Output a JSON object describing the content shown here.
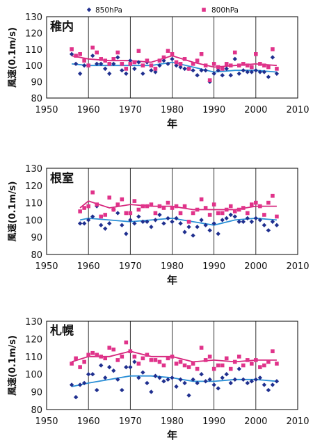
{
  "legend": {
    "series_a": "850hPa",
    "series_b": "800hPa"
  },
  "style": {
    "series_a_color": "#1f2f8f",
    "series_b_color": "#e0338a",
    "trend_a_color": "#2a8fd6",
    "trend_b_color": "#d6267d",
    "grid_color": "#000000"
  },
  "chart_data": [
    {
      "type": "scatter",
      "title": "稚内",
      "xlabel": "年",
      "ylabel": "風速(0.1m/s)",
      "xlim": [
        1950,
        2010
      ],
      "ylim": [
        80,
        130
      ],
      "xticks": [
        1950,
        1960,
        1970,
        1980,
        1990,
        2000,
        2010
      ],
      "yticks": [
        80,
        90,
        100,
        110,
        120,
        130
      ],
      "grid": "vertical",
      "legend_position": "top",
      "series": [
        {
          "name": "850hPa",
          "marker": "diamond",
          "x": [
            1956,
            1957,
            1958,
            1959,
            1960,
            1961,
            1962,
            1963,
            1964,
            1965,
            1966,
            1967,
            1968,
            1969,
            1970,
            1971,
            1972,
            1973,
            1974,
            1975,
            1976,
            1977,
            1978,
            1979,
            1980,
            1981,
            1982,
            1983,
            1984,
            1985,
            1986,
            1987,
            1988,
            1989,
            1990,
            1991,
            1992,
            1993,
            1994,
            1995,
            1996,
            1997,
            1998,
            1999,
            2000,
            2001,
            2002,
            2003,
            2004,
            2005
          ],
          "y": [
            107,
            101,
            95,
            100,
            100,
            106,
            101,
            101,
            98,
            95,
            101,
            105,
            97,
            95,
            103,
            98,
            102,
            95,
            102,
            97,
            96,
            100,
            103,
            101,
            104,
            100,
            99,
            98,
            98,
            97,
            94,
            97,
            97,
            90,
            95,
            97,
            94,
            98,
            94,
            104,
            95,
            97,
            96,
            96,
            97,
            96,
            96,
            93,
            105,
            95
          ]
        },
        {
          "name": "800hPa",
          "marker": "square",
          "x": [
            1956,
            1957,
            1958,
            1959,
            1960,
            1961,
            1962,
            1963,
            1964,
            1965,
            1966,
            1967,
            1968,
            1969,
            1970,
            1971,
            1972,
            1973,
            1974,
            1975,
            1976,
            1977,
            1978,
            1979,
            1980,
            1981,
            1982,
            1983,
            1984,
            1985,
            1986,
            1987,
            1988,
            1989,
            1990,
            1991,
            1992,
            1993,
            1994,
            1995,
            1996,
            1997,
            1998,
            1999,
            2000,
            2001,
            2002,
            2003,
            2004,
            2005
          ],
          "y": [
            110,
            106,
            107,
            103,
            100,
            111,
            108,
            104,
            103,
            101,
            104,
            108,
            101,
            98,
            101,
            102,
            109,
            100,
            103,
            100,
            98,
            103,
            105,
            109,
            107,
            102,
            101,
            104,
            98,
            101,
            103,
            107,
            100,
            91,
            101,
            99,
            98,
            101,
            100,
            108,
            100,
            101,
            100,
            99,
            107,
            101,
            100,
            99,
            110,
            98
          ]
        },
        {
          "name": "850hPa trend",
          "marker": "line",
          "x": [
            1956,
            1960,
            1965,
            1970,
            1975,
            1980,
            1985,
            1990,
            1995,
            2000,
            2005
          ],
          "y": [
            101,
            100,
            100,
            100,
            100,
            102,
            99,
            96,
            97,
            97,
            96
          ]
        },
        {
          "name": "800hPa trend",
          "marker": "line",
          "x": [
            1956,
            1960,
            1965,
            1970,
            1975,
            1980,
            1985,
            1990,
            1995,
            2000,
            2005
          ],
          "y": [
            106,
            104,
            103,
            103,
            102,
            106,
            102,
            99,
            100,
            101,
            100
          ]
        }
      ]
    },
    {
      "type": "scatter",
      "title": "根室",
      "xlabel": "年",
      "ylabel": "風速(0.1m/s)",
      "xlim": [
        1950,
        2010
      ],
      "ylim": [
        80,
        130
      ],
      "xticks": [
        1950,
        1960,
        1970,
        1980,
        1990,
        2000,
        2010
      ],
      "yticks": [
        80,
        90,
        100,
        110,
        120,
        130
      ],
      "grid": "vertical",
      "legend_position": "none",
      "series": [
        {
          "name": "850hPa",
          "marker": "diamond",
          "x": [
            1958,
            1959,
            1960,
            1961,
            1962,
            1963,
            1964,
            1965,
            1966,
            1967,
            1968,
            1969,
            1970,
            1971,
            1972,
            1973,
            1974,
            1975,
            1976,
            1977,
            1978,
            1979,
            1980,
            1981,
            1982,
            1983,
            1984,
            1985,
            1986,
            1987,
            1988,
            1989,
            1990,
            1991,
            1992,
            1993,
            1994,
            1995,
            1996,
            1997,
            1998,
            1999,
            2000,
            2001,
            2002,
            2003,
            2004,
            2005
          ],
          "y": [
            98,
            98,
            100,
            102,
            108,
            97,
            95,
            98,
            106,
            104,
            97,
            92,
            100,
            98,
            102,
            99,
            99,
            96,
            100,
            103,
            98,
            101,
            99,
            101,
            98,
            93,
            96,
            91,
            96,
            100,
            97,
            94,
            98,
            92,
            100,
            101,
            103,
            102,
            99,
            99,
            101,
            99,
            101,
            100,
            97,
            94,
            99,
            97
          ]
        },
        {
          "name": "800hPa",
          "marker": "square",
          "x": [
            1958,
            1959,
            1960,
            1961,
            1962,
            1963,
            1964,
            1965,
            1966,
            1967,
            1968,
            1969,
            1970,
            1971,
            1972,
            1973,
            1974,
            1975,
            1976,
            1977,
            1978,
            1979,
            1980,
            1981,
            1982,
            1983,
            1984,
            1985,
            1986,
            1987,
            1988,
            1989,
            1990,
            1991,
            1992,
            1993,
            1994,
            1995,
            1996,
            1997,
            1998,
            1999,
            2000,
            2001,
            2002,
            2003,
            2004,
            2005
          ],
          "y": [
            105,
            107,
            108,
            116,
            109,
            102,
            103,
            113,
            106,
            109,
            112,
            104,
            104,
            111,
            106,
            108,
            108,
            109,
            104,
            108,
            107,
            110,
            107,
            108,
            104,
            108,
            99,
            104,
            106,
            112,
            107,
            103,
            109,
            104,
            104,
            106,
            108,
            105,
            106,
            107,
            104,
            109,
            110,
            108,
            103,
            110,
            114,
            102
          ]
        },
        {
          "name": "850hPa trend",
          "marker": "line",
          "x": [
            1958,
            1960,
            1965,
            1970,
            1975,
            1980,
            1985,
            1990,
            1995,
            2000,
            2005
          ],
          "y": [
            100,
            101,
            100,
            99,
            100,
            101,
            99,
            97,
            100,
            101,
            100
          ]
        },
        {
          "name": "800hPa trend",
          "marker": "line",
          "x": [
            1958,
            1960,
            1965,
            1970,
            1975,
            1980,
            1985,
            1990,
            1995,
            2000,
            2005
          ],
          "y": [
            107,
            111,
            107,
            109,
            108,
            108,
            106,
            106,
            106,
            108,
            108
          ]
        }
      ]
    },
    {
      "type": "scatter",
      "title": "札幌",
      "xlabel": "年",
      "ylabel": "風速(0.1m/s)",
      "xlim": [
        1950,
        2010
      ],
      "ylim": [
        80,
        130
      ],
      "xticks": [
        1950,
        1960,
        1970,
        1980,
        1990,
        2000,
        2010
      ],
      "yticks": [
        80,
        90,
        100,
        110,
        120,
        130
      ],
      "grid": "vertical",
      "legend_position": "none",
      "series": [
        {
          "name": "850hPa",
          "marker": "diamond",
          "x": [
            1956,
            1957,
            1958,
            1959,
            1960,
            1961,
            1962,
            1963,
            1964,
            1965,
            1966,
            1967,
            1968,
            1969,
            1970,
            1971,
            1972,
            1973,
            1974,
            1975,
            1976,
            1977,
            1978,
            1979,
            1980,
            1981,
            1982,
            1983,
            1984,
            1985,
            1986,
            1987,
            1988,
            1989,
            1990,
            1991,
            1992,
            1993,
            1994,
            1995,
            1996,
            1997,
            1998,
            1999,
            2000,
            2001,
            2002,
            2003,
            2004,
            2005
          ],
          "y": [
            94,
            87,
            94,
            95,
            100,
            100,
            91,
            105,
            98,
            104,
            102,
            97,
            91,
            104,
            104,
            107,
            98,
            101,
            95,
            90,
            99,
            98,
            96,
            97,
            98,
            93,
            97,
            95,
            88,
            97,
            95,
            100,
            96,
            97,
            94,
            92,
            98,
            100,
            95,
            97,
            103,
            97,
            95,
            96,
            97,
            98,
            94,
            91,
            94,
            96
          ]
        },
        {
          "name": "800hPa",
          "marker": "square",
          "x": [
            1956,
            1957,
            1958,
            1959,
            1960,
            1961,
            1962,
            1963,
            1964,
            1965,
            1966,
            1967,
            1968,
            1969,
            1970,
            1971,
            1972,
            1973,
            1974,
            1975,
            1976,
            1977,
            1978,
            1979,
            1980,
            1981,
            1982,
            1983,
            1984,
            1985,
            1986,
            1987,
            1988,
            1989,
            1990,
            1991,
            1992,
            1993,
            1994,
            1995,
            1996,
            1997,
            1998,
            1999,
            2000,
            2001,
            2002,
            2003,
            2004,
            2005
          ],
          "y": [
            106,
            109,
            104,
            107,
            111,
            112,
            111,
            110,
            109,
            115,
            114,
            108,
            110,
            118,
            113,
            110,
            106,
            109,
            111,
            108,
            108,
            107,
            105,
            109,
            110,
            106,
            107,
            105,
            104,
            106,
            103,
            115,
            108,
            110,
            103,
            105,
            105,
            109,
            103,
            107,
            110,
            105,
            108,
            106,
            108,
            104,
            105,
            107,
            113,
            106
          ]
        },
        {
          "name": "850hPa trend",
          "marker": "line",
          "x": [
            1956,
            1960,
            1965,
            1970,
            1975,
            1980,
            1985,
            1990,
            1995,
            2000,
            2005
          ],
          "y": [
            93,
            95,
            97,
            99,
            99,
            98,
            96,
            96,
            97,
            97,
            96
          ]
        },
        {
          "name": "800hPa trend",
          "marker": "line",
          "x": [
            1956,
            1960,
            1965,
            1970,
            1975,
            1980,
            1985,
            1990,
            1995,
            2000,
            2005
          ],
          "y": [
            107,
            110,
            110,
            113,
            110,
            110,
            107,
            108,
            107,
            108,
            108
          ]
        }
      ]
    }
  ]
}
